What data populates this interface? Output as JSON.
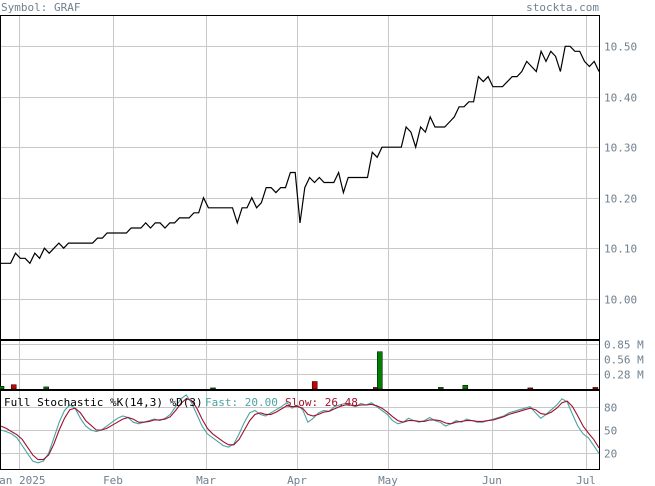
{
  "header": {
    "symbol_label": "Symbol: GRAF",
    "site": "stockta.com"
  },
  "stoch_legend": {
    "title": "Full Stochastic %K(14,3) %D(3)",
    "fast_label": "Fast: 20.00",
    "slow_label": "Slow: 26.48"
  },
  "colors": {
    "price_line": "#000000",
    "volume_up": "#008000",
    "volume_down": "#cc0000",
    "fast_line": "#4aa3a3",
    "slow_line": "#a0102a",
    "axis_text": "#708090"
  },
  "chart_data": [
    {
      "type": "line",
      "panel": "price",
      "x_axis": [
        "Jan 2025",
        "Feb",
        "Mar",
        "Apr",
        "May",
        "Jun",
        "Jul"
      ],
      "y_ticks": [
        "10.50",
        "10.40",
        "10.30",
        "10.20",
        "10.10",
        "10.00"
      ],
      "ylim": [
        9.92,
        10.56
      ],
      "series": [
        {
          "values": [
            10.07,
            10.07,
            10.07,
            10.09,
            10.08,
            10.08,
            10.07,
            10.09,
            10.08,
            10.1,
            10.09,
            10.1,
            10.11,
            10.1,
            10.11,
            10.11,
            10.11,
            10.11,
            10.11,
            10.11,
            10.12,
            10.12,
            10.13,
            10.13,
            10.13,
            10.13,
            10.13,
            10.14,
            10.14,
            10.14,
            10.15,
            10.14,
            10.15,
            10.15,
            10.14,
            10.15,
            10.15,
            10.16,
            10.16,
            10.16,
            10.17,
            10.17,
            10.2,
            10.18,
            10.18,
            10.18,
            10.18,
            10.18,
            10.18,
            10.15,
            10.18,
            10.18,
            10.2,
            10.18,
            10.19,
            10.22,
            10.22,
            10.21,
            10.22,
            10.22,
            10.25,
            10.25,
            10.15,
            10.22,
            10.24,
            10.23,
            10.24,
            10.23,
            10.23,
            10.23,
            10.25,
            10.21,
            10.24,
            10.24,
            10.24,
            10.24,
            10.24,
            10.29,
            10.28,
            10.3,
            10.3,
            10.3,
            10.3,
            10.3,
            10.34,
            10.33,
            10.3,
            10.34,
            10.33,
            10.36,
            10.34,
            10.34,
            10.34,
            10.35,
            10.36,
            10.38,
            10.38,
            10.39,
            10.39,
            10.44,
            10.43,
            10.44,
            10.42,
            10.42,
            10.42,
            10.43,
            10.44,
            10.44,
            10.45,
            10.47,
            10.46,
            10.45,
            10.49,
            10.47,
            10.49,
            10.48,
            10.45,
            10.5,
            10.5,
            10.49,
            10.49,
            10.47,
            10.46,
            10.47,
            10.45
          ]
        }
      ]
    },
    {
      "type": "bar",
      "panel": "volume",
      "y_ticks": [
        "0.85 M",
        "0.56 M",
        "0.28 M"
      ],
      "ylim": [
        0,
        0.9
      ],
      "bars": [
        {
          "index": 0,
          "value": 0.05,
          "up": true
        },
        {
          "index": 3,
          "value": 0.08,
          "up": false
        },
        {
          "index": 11,
          "value": 0.04,
          "up": true
        },
        {
          "index": 52,
          "value": 0.02,
          "up": true
        },
        {
          "index": 77,
          "value": 0.14,
          "up": false
        },
        {
          "index": 92,
          "value": 0.03,
          "up": false
        },
        {
          "index": 93,
          "value": 0.7,
          "up": true
        },
        {
          "index": 108,
          "value": 0.03,
          "up": true
        },
        {
          "index": 114,
          "value": 0.07,
          "up": true
        },
        {
          "index": 130,
          "value": 0.02,
          "up": false
        },
        {
          "index": 146,
          "value": 0.03,
          "up": false
        }
      ]
    },
    {
      "type": "line",
      "panel": "stochastic",
      "y_ticks": [
        "80",
        "50",
        "20"
      ],
      "ylim": [
        0,
        100
      ],
      "series": [
        {
          "name": "Fast",
          "values": [
            50,
            48,
            45,
            40,
            30,
            20,
            10,
            8,
            10,
            20,
            40,
            60,
            75,
            82,
            78,
            65,
            55,
            50,
            48,
            50,
            55,
            60,
            65,
            68,
            66,
            60,
            58,
            60,
            62,
            64,
            62,
            65,
            70,
            80,
            90,
            95,
            85,
            70,
            55,
            45,
            40,
            35,
            30,
            28,
            32,
            45,
            60,
            72,
            75,
            70,
            68,
            72,
            76,
            80,
            85,
            78,
            82,
            76,
            60,
            65,
            72,
            75,
            74,
            80,
            82,
            84,
            82,
            80,
            84,
            82,
            85,
            80,
            75,
            70,
            62,
            58,
            60,
            65,
            62,
            60,
            62,
            66,
            62,
            60,
            55,
            58,
            62,
            60,
            64,
            62,
            60,
            60,
            62,
            64,
            66,
            68,
            72,
            74,
            76,
            78,
            80,
            72,
            65,
            70,
            76,
            82,
            90,
            86,
            70,
            55,
            45,
            40,
            30,
            20
          ]
        },
        {
          "name": "Slow",
          "values": [
            55,
            52,
            48,
            44,
            38,
            28,
            18,
            12,
            12,
            18,
            32,
            50,
            65,
            76,
            78,
            72,
            62,
            56,
            50,
            50,
            52,
            56,
            60,
            64,
            66,
            64,
            60,
            60,
            61,
            63,
            63,
            64,
            67,
            75,
            84,
            90,
            88,
            78,
            64,
            52,
            45,
            40,
            35,
            31,
            31,
            38,
            50,
            62,
            70,
            72,
            70,
            70,
            73,
            77,
            81,
            80,
            80,
            78,
            70,
            68,
            70,
            73,
            74,
            77,
            80,
            82,
            82,
            81,
            82,
            82,
            83,
            81,
            78,
            73,
            67,
            62,
            60,
            62,
            62,
            61,
            61,
            63,
            63,
            62,
            59,
            58,
            60,
            61,
            62,
            62,
            61,
            61,
            62,
            63,
            65,
            67,
            70,
            72,
            74,
            76,
            78,
            76,
            71,
            70,
            73,
            78,
            85,
            87,
            80,
            68,
            55,
            46,
            38,
            27
          ]
        }
      ]
    }
  ]
}
